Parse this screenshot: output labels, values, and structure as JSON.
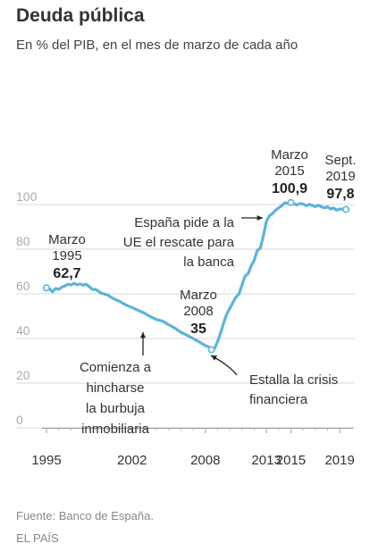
{
  "header": {
    "title": "Deuda pública",
    "subtitle": "En % del PIB, en el mes de marzo de cada año"
  },
  "footer": {
    "source": "Fuente: Banco de España.",
    "brand": "EL PAÍS"
  },
  "chart_data": {
    "type": "line",
    "title": "Deuda pública",
    "subtitle": "En % del PIB, en el mes de marzo de cada año",
    "xlabel": "",
    "ylabel": "",
    "xlim": [
      1995,
      2019.5
    ],
    "ylim": [
      0,
      100
    ],
    "yticks": [
      0,
      20,
      40,
      60,
      80,
      100
    ],
    "xticks": [
      "1995",
      "2002",
      "2008",
      "2013",
      "2015",
      "2019"
    ],
    "grid": true,
    "line_color": "#5bb5d8",
    "series": [
      {
        "x": [
          1995.0,
          1995.25,
          1995.5,
          1995.75,
          1996.0,
          1996.25,
          1996.5,
          1996.75,
          1997.0,
          1997.25,
          1997.5,
          1997.75,
          1998.0,
          1998.25,
          1998.5,
          1998.75,
          1999.0,
          1999.5,
          2000.0,
          2000.5,
          2001.0,
          2001.5,
          2002.0,
          2002.5,
          2003.0,
          2003.5,
          2004.0,
          2004.5,
          2005.0,
          2005.5,
          2006.0,
          2006.5,
          2007.0,
          2007.5,
          2008.0,
          2008.25,
          2008.5,
          2008.75,
          2009.0,
          2009.25,
          2009.5,
          2009.75,
          2010.0,
          2010.25,
          2010.5,
          2010.75,
          2011.0,
          2011.25,
          2011.5,
          2011.75,
          2012.0,
          2012.25,
          2012.5,
          2012.75,
          2013.0,
          2013.25,
          2013.5,
          2013.75,
          2014.0,
          2014.25,
          2014.5,
          2014.75,
          2015.0,
          2015.25,
          2015.5,
          2015.75,
          2016.0,
          2016.25,
          2016.5,
          2016.75,
          2017.0,
          2017.25,
          2017.5,
          2017.75,
          2018.0,
          2018.25,
          2018.5,
          2018.75,
          2019.0,
          2019.25,
          2019.5
        ],
        "values": [
          62.7,
          62.2,
          60.9,
          62.4,
          62.0,
          63.0,
          63.5,
          64.3,
          64.0,
          64.7,
          64.1,
          64.4,
          63.9,
          64.3,
          63.2,
          62.0,
          62.0,
          60.3,
          59.5,
          57.8,
          56.6,
          55.0,
          53.9,
          52.6,
          51.4,
          49.8,
          48.5,
          47.8,
          46.2,
          44.7,
          42.8,
          41.5,
          40.0,
          38.5,
          36.8,
          36.3,
          35.0,
          35.5,
          38.5,
          42.5,
          47.0,
          51.0,
          53.5,
          56.0,
          58.5,
          60.0,
          64.0,
          68.0,
          69.0,
          72.5,
          75.0,
          79.5,
          80.5,
          86.0,
          92.5,
          95.0,
          96.0,
          97.5,
          98.5,
          99.5,
          100.8,
          100.5,
          100.9,
          100.3,
          99.8,
          100.5,
          100.2,
          99.5,
          100.0,
          99.7,
          99.0,
          99.7,
          99.0,
          98.5,
          99.0,
          98.0,
          98.5,
          97.5,
          98.0,
          97.9,
          97.8
        ]
      }
    ],
    "annotations": [
      {
        "key": "a1995",
        "lines": [
          "Marzo",
          "1995"
        ],
        "value_text": "62,7",
        "x": 1995.0,
        "y": 62.7,
        "marker": true
      },
      {
        "key": "a2008",
        "lines": [
          "Marzo",
          "2008"
        ],
        "value_text": "35",
        "x": 2008.5,
        "y": 35.0,
        "marker": true
      },
      {
        "key": "a2015",
        "lines": [
          "Marzo",
          "2015"
        ],
        "value_text": "100,9",
        "x": 2015.0,
        "y": 100.9,
        "marker": true
      },
      {
        "key": "a2019",
        "lines": [
          "Sept.",
          "2019"
        ],
        "value_text": "97,8",
        "x": 2019.5,
        "y": 97.8,
        "marker": true
      },
      {
        "key": "burbuja",
        "lines": [
          "Comienza a",
          "hincharse",
          "la burbuja",
          "inmobiliaria"
        ],
        "x": 2003.5,
        "y": 45
      },
      {
        "key": "crisis",
        "lines": [
          "Estalla la crisis",
          "financiera"
        ],
        "x": 2009.0,
        "y": 35
      },
      {
        "key": "rescate",
        "lines": [
          "España pide a la",
          "UE el rescate para",
          "la banca"
        ],
        "x": 2013.5,
        "y": 93
      }
    ]
  }
}
